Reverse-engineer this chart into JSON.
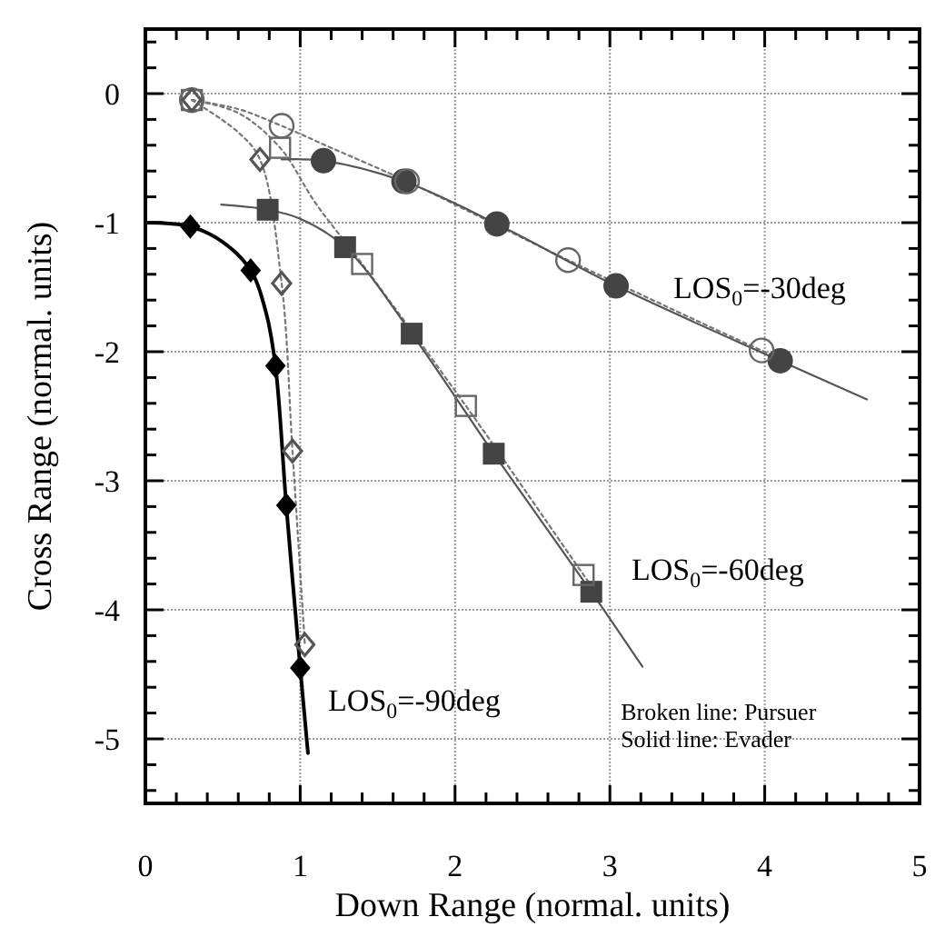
{
  "chart_data": {
    "type": "line",
    "xlabel": "Down Range (normal. units)",
    "ylabel": "Cross Range (normal. units)",
    "xlim": [
      0,
      5
    ],
    "ylim": [
      -5.5,
      0.5
    ],
    "xticks": [
      0,
      {
        "value": 0.2,
        "label": null
      },
      {
        "value": 0.4,
        "label": null
      },
      {
        "value": 0.6,
        "label": null
      },
      {
        "value": 0.8,
        "label": null
      },
      1,
      {
        "value": 1.2,
        "label": null
      },
      {
        "value": 1.4,
        "label": null
      },
      {
        "value": 1.6,
        "label": null
      },
      {
        "value": 1.8,
        "label": null
      },
      2,
      {
        "value": 2.2,
        "label": null
      },
      {
        "value": 2.4,
        "label": null
      },
      {
        "value": 2.6,
        "label": null
      },
      {
        "value": 2.8,
        "label": null
      },
      3,
      {
        "value": 3.2,
        "label": null
      },
      {
        "value": 3.4,
        "label": null
      },
      {
        "value": 3.6,
        "label": null
      },
      {
        "value": 3.8,
        "label": null
      },
      4,
      {
        "value": 4.2,
        "label": null
      },
      {
        "value": 4.4,
        "label": null
      },
      {
        "value": 4.6,
        "label": null
      },
      {
        "value": 4.8,
        "label": null
      },
      5
    ],
    "yticks": [
      {
        "value": -5.4,
        "label": null
      },
      {
        "value": -5.2,
        "label": null
      },
      -5,
      {
        "value": -4.8,
        "label": null
      },
      {
        "value": -4.6,
        "label": null
      },
      {
        "value": -4.4,
        "label": null
      },
      {
        "value": -4.2,
        "label": null
      },
      -4,
      {
        "value": -3.8,
        "label": null
      },
      {
        "value": -3.6,
        "label": null
      },
      {
        "value": -3.4,
        "label": null
      },
      {
        "value": -3.2,
        "label": null
      },
      -3,
      {
        "value": -2.8,
        "label": null
      },
      {
        "value": -2.6,
        "label": null
      },
      {
        "value": -2.4,
        "label": null
      },
      {
        "value": -2.2,
        "label": null
      },
      -2,
      {
        "value": -1.8,
        "label": null
      },
      {
        "value": -1.6,
        "label": null
      },
      {
        "value": -1.4,
        "label": null
      },
      {
        "value": -1.2,
        "label": null
      },
      -1,
      {
        "value": -0.8,
        "label": null
      },
      {
        "value": -0.6,
        "label": null
      },
      {
        "value": -0.4,
        "label": null
      },
      {
        "value": -0.2,
        "label": null
      },
      0,
      {
        "value": 0.2,
        "label": null
      },
      {
        "value": 0.4,
        "label": null
      }
    ],
    "grid": true,
    "series": [
      {
        "color": "#777777",
        "line_style": "dotted",
        "marker": "none",
        "x": [
          0.3,
          0.6,
          0.88,
          1.2,
          1.69,
          2.73,
          3.98,
          4.1
        ],
        "values": [
          -0.05,
          -0.12,
          -0.25,
          -0.42,
          -0.68,
          -1.29,
          -1.99,
          -2.05
        ]
      },
      {
        "type": "line",
        "color": "#777777",
        "line_style": "dotted",
        "marker": "none",
        "x": [
          0.3,
          0.6,
          0.87,
          1.1,
          1.4,
          2.07,
          2.83,
          2.9
        ],
        "values": [
          -0.05,
          -0.15,
          -0.42,
          -0.85,
          -1.32,
          -2.42,
          -3.73,
          -3.85
        ]
      },
      {
        "type": "line",
        "color": "#777777",
        "line_style": "dotted",
        "marker": "none",
        "x": [
          0.3,
          0.6,
          0.74,
          0.88,
          0.95,
          1.03
        ],
        "values": [
          -0.05,
          -0.3,
          -0.51,
          -1.47,
          -2.77,
          -4.27
        ]
      },
      {
        "type": "line",
        "color": "#555555",
        "line_style": "solid",
        "marker": "none",
        "x": [
          0.88,
          1.15,
          1.67,
          2.27,
          3.04,
          4.1,
          4.66
        ],
        "values": [
          -0.51,
          -0.52,
          -0.68,
          -1.01,
          -1.49,
          -2.07,
          -2.37
        ]
      },
      {
        "type": "line",
        "color": "#555555",
        "line_style": "solid",
        "marker": "none",
        "x": [
          0.49,
          0.79,
          1.0,
          1.29,
          1.72,
          2.25,
          2.88,
          3.21
        ],
        "values": [
          -0.86,
          -0.9,
          -0.97,
          -1.19,
          -1.86,
          -2.79,
          -3.86,
          -4.44
        ]
      },
      {
        "type": "line",
        "color": "#000000",
        "line_style": "solid",
        "marker": "none",
        "x": [
          0,
          0.29,
          0.5,
          0.68,
          0.78,
          0.84,
          0.91,
          1.0,
          1.05
        ],
        "values": [
          -1,
          -1.03,
          -1.15,
          -1.37,
          -1.7,
          -2.11,
          -3.19,
          -4.45,
          -5.11
        ]
      },
      {
        "type": "scatter",
        "color": "#666666",
        "marker": "circle-open",
        "x": [
          0.3,
          0.88,
          1.69,
          2.73,
          3.98
        ],
        "values": [
          -0.05,
          -0.25,
          -0.68,
          -1.29,
          -1.99
        ]
      },
      {
        "type": "scatter",
        "color": "#666666",
        "marker": "square-open",
        "x": [
          0.3,
          0.87,
          1.4,
          2.07,
          2.83
        ],
        "values": [
          -0.05,
          -0.42,
          -1.32,
          -2.42,
          -3.73
        ]
      },
      {
        "type": "scatter",
        "color": "#555555",
        "marker": "diamond-open",
        "x": [
          0.3,
          0.74,
          0.88,
          0.95,
          1.03
        ],
        "values": [
          -0.05,
          -0.51,
          -1.47,
          -2.77,
          -4.27
        ]
      },
      {
        "type": "scatter",
        "color": "#444444",
        "marker": "circle",
        "x": [
          1.15,
          1.67,
          2.27,
          3.04,
          4.1
        ],
        "values": [
          -0.52,
          -0.68,
          -1.01,
          -1.49,
          -2.07
        ]
      },
      {
        "type": "scatter",
        "color": "#444444",
        "marker": "square",
        "x": [
          0.79,
          1.29,
          1.72,
          2.25,
          2.88
        ],
        "values": [
          -0.9,
          -1.19,
          -1.86,
          -2.79,
          -3.86
        ]
      },
      {
        "type": "scatter",
        "color": "#000000",
        "marker": "diamond",
        "x": [
          0.29,
          0.68,
          0.84,
          0.91,
          1.0
        ],
        "values": [
          -1.03,
          -1.37,
          -2.11,
          -3.19,
          -4.45
        ]
      }
    ],
    "annotations": [
      "LOS$_{0}$=-30deg",
      "LOS$_{0}$=-60deg",
      "LOS$_{0}$=-90deg",
      "Broken line: Pursuer",
      "Solid line: Evader"
    ]
  }
}
